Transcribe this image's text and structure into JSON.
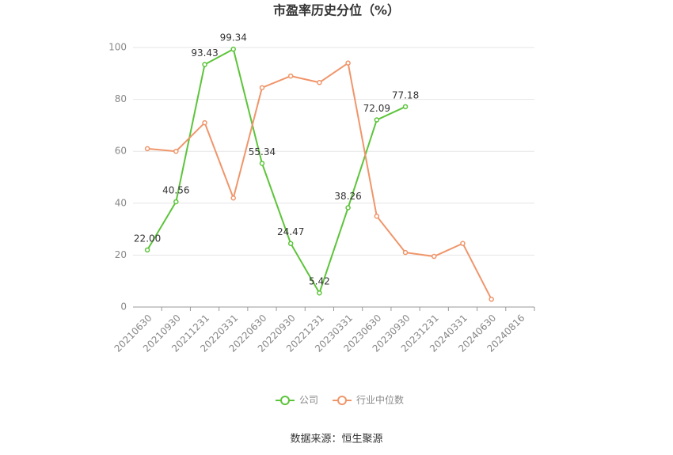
{
  "chart_data": {
    "type": "line",
    "title": "市盈率历史分位（%）",
    "source": "数据来源：恒生聚源",
    "categories": [
      "20210630",
      "20210930",
      "20211231",
      "20220331",
      "20220630",
      "20220930",
      "20221231",
      "20230331",
      "20230630",
      "20230930",
      "20231231",
      "20240331",
      "20240630",
      "20240816"
    ],
    "series": [
      {
        "name": "公司",
        "color": "#5cc43a",
        "values": [
          22,
          40.56,
          93.43,
          99.34,
          55.34,
          24.47,
          5.42,
          38.26,
          72.09,
          77.18,
          null,
          null,
          null,
          null
        ],
        "value_labels": [
          "22.00",
          "40.56",
          "93.43",
          "99.34",
          "55.34",
          "24.47",
          "5.42",
          "38.26",
          "72.09",
          "77.18",
          null,
          null,
          null,
          null
        ]
      },
      {
        "name": "行业中位数",
        "color": "#f0956a",
        "values": [
          61,
          60,
          71,
          42,
          84.5,
          89,
          86.5,
          94,
          35,
          21,
          19.5,
          24.5,
          3,
          null
        ]
      }
    ],
    "ylim": [
      0,
      100
    ],
    "yticks": [
      0,
      20,
      40,
      60,
      80,
      100
    ],
    "grid": true,
    "legend": "bottom"
  }
}
